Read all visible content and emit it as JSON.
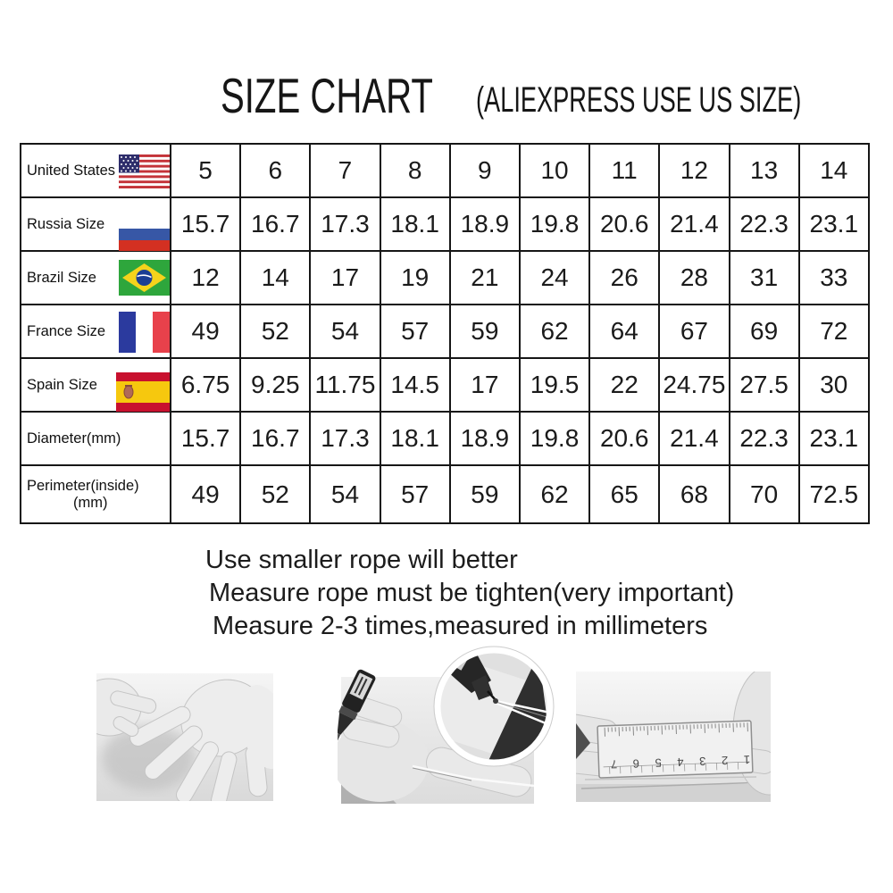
{
  "chart_data": {
    "type": "table",
    "title": "SIZE CHART",
    "subtitle": "(ALIEXPRESS USE US SIZE)",
    "rows": [
      {
        "label": "United States",
        "flag": "us",
        "values": [
          "5",
          "6",
          "7",
          "8",
          "9",
          "10",
          "11",
          "12",
          "13",
          "14"
        ]
      },
      {
        "label": "Russia Size",
        "flag": "russia",
        "values": [
          "15.7",
          "16.7",
          "17.3",
          "18.1",
          "18.9",
          "19.8",
          "20.6",
          "21.4",
          "22.3",
          "23.1"
        ]
      },
      {
        "label": "Brazil Size",
        "flag": "brazil",
        "values": [
          "12",
          "14",
          "17",
          "19",
          "21",
          "24",
          "26",
          "28",
          "31",
          "33"
        ]
      },
      {
        "label": "France Size",
        "flag": "france",
        "values": [
          "49",
          "52",
          "54",
          "57",
          "59",
          "62",
          "64",
          "67",
          "69",
          "72"
        ]
      },
      {
        "label": "Spain Size",
        "flag": "spain",
        "values": [
          "6.75",
          "9.25",
          "11.75",
          "14.5",
          "17",
          "19.5",
          "22",
          "24.75",
          "27.5",
          "30"
        ]
      },
      {
        "label": "Diameter(mm)",
        "flag": null,
        "values": [
          "15.7",
          "16.7",
          "17.3",
          "18.1",
          "18.9",
          "19.8",
          "20.6",
          "21.4",
          "22.3",
          "23.1"
        ]
      },
      {
        "label": "Perimeter(inside)",
        "sublabel": "(mm)",
        "flag": null,
        "values": [
          "49",
          "52",
          "54",
          "57",
          "59",
          "62",
          "65",
          "68",
          "70",
          "72.5"
        ]
      }
    ]
  },
  "notes": [
    "Use smaller rope will better",
    "Measure rope must be tighten(very important)",
    "Measure 2-3 times,measured in millimeters"
  ],
  "photos": [
    {
      "name": "hands-pointing-at-palm-photo"
    },
    {
      "name": "marking-rope-on-finger-photo"
    },
    {
      "name": "measuring-rope-with-ruler-photo",
      "ruler_numbers": "1 2 3 4 5 6 7"
    }
  ],
  "colors": {
    "table_border": "#161616",
    "us_flag_red": "#C43339",
    "us_flag_blue": "#2E2D6B",
    "russia_flag_blue": "#3757A6",
    "russia_flag_red": "#D33022",
    "brazil_flag_green": "#2EA63C",
    "brazil_flag_yellow": "#F5D31C",
    "brazil_flag_blue": "#1B3E94",
    "france_flag_blue": "#2B3A9E",
    "france_flag_red": "#E8414B",
    "spain_flag_red": "#C8102E",
    "spain_flag_yellow": "#F6C80E"
  }
}
